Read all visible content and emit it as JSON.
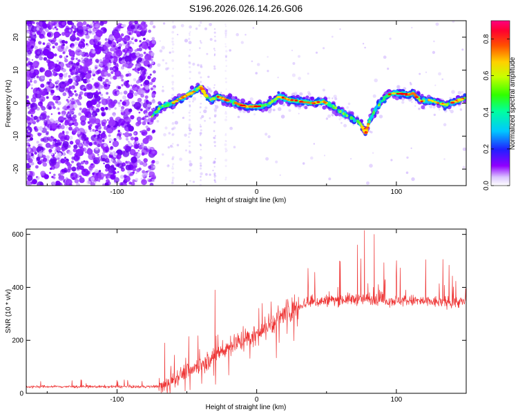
{
  "chart_data": [
    {
      "type": "heatmap",
      "title": "S196.2026.026.14.26.G06",
      "xlabel": "Height of straight line (km)",
      "ylabel": "Frequency (Hz)",
      "xlim": [
        -165,
        150
      ],
      "ylim": [
        -25,
        25
      ],
      "x_ticks": [
        -100,
        0,
        100
      ],
      "x_tick_labels": [
        "-100",
        "0",
        "100"
      ],
      "y_ticks": [
        -20,
        -10,
        0,
        10,
        20
      ],
      "y_tick_labels": [
        "-20",
        "-10",
        "0",
        "10",
        "20"
      ],
      "colorbar": {
        "label": "Normalized spectral amplitude",
        "range": [
          0,
          0.9
        ],
        "ticks": [
          0,
          0.2,
          0.4,
          0.6,
          0.8
        ],
        "tick_labels": [
          "0.0",
          "0.2",
          "0.4",
          "0.6",
          "0.8"
        ]
      },
      "ridge": {
        "x": [
          -75,
          -68,
          -60,
          -52,
          -45,
          -40,
          -36,
          -32,
          -28,
          -22,
          -15,
          -8,
          0,
          8,
          16,
          24,
          32,
          40,
          48,
          56,
          62,
          66,
          70,
          74,
          78,
          81,
          85,
          90,
          96,
          102,
          108,
          112,
          118,
          124,
          130,
          136,
          142,
          149
        ],
        "freq_hz": [
          -4,
          -1,
          0,
          2,
          3.5,
          5,
          2,
          1,
          2,
          1,
          0,
          -1,
          -1,
          -0.5,
          2,
          1,
          0.5,
          0,
          0.5,
          -1.5,
          -3,
          -4,
          -5,
          -6,
          -9,
          -5,
          -2,
          1,
          3,
          3,
          2.5,
          3,
          0.5,
          1,
          0,
          -0.5,
          0.5,
          1.5
        ]
      },
      "noise_region_x": [
        -165,
        -75
      ]
    },
    {
      "type": "line",
      "xlabel": "Height of straight line (km)",
      "ylabel": "SNR (10 * v/v)",
      "xlim": [
        -165,
        150
      ],
      "ylim": [
        0,
        620
      ],
      "x_ticks": [
        -100,
        0,
        100
      ],
      "x_tick_labels": [
        "-100",
        "0",
        "100"
      ],
      "y_ticks": [
        0,
        200,
        400,
        600
      ],
      "y_tick_labels": [
        "0",
        "200",
        "400",
        "600"
      ],
      "line_color": "#ee3333",
      "trend": {
        "x": [
          -165,
          -75,
          -65,
          -55,
          -45,
          -35,
          -25,
          -15,
          -5,
          5,
          15,
          25,
          35,
          50,
          65,
          80,
          95,
          110,
          125,
          140,
          150
        ],
        "snr": [
          25,
          25,
          30,
          70,
          95,
          125,
          160,
          190,
          210,
          240,
          280,
          320,
          340,
          350,
          355,
          355,
          350,
          350,
          345,
          345,
          345
        ]
      },
      "peaks": [
        {
          "x": 77,
          "snr": 615
        },
        {
          "x": 84,
          "snr": 600
        },
        {
          "x": 72,
          "snr": 560
        },
        {
          "x": -66,
          "snr": 190
        },
        {
          "x": -30,
          "snr": 390
        }
      ]
    }
  ],
  "colors": {
    "heatmap_noise": "#7a00ff",
    "snr_line": "#ee3333",
    "axis": "#000000"
  }
}
